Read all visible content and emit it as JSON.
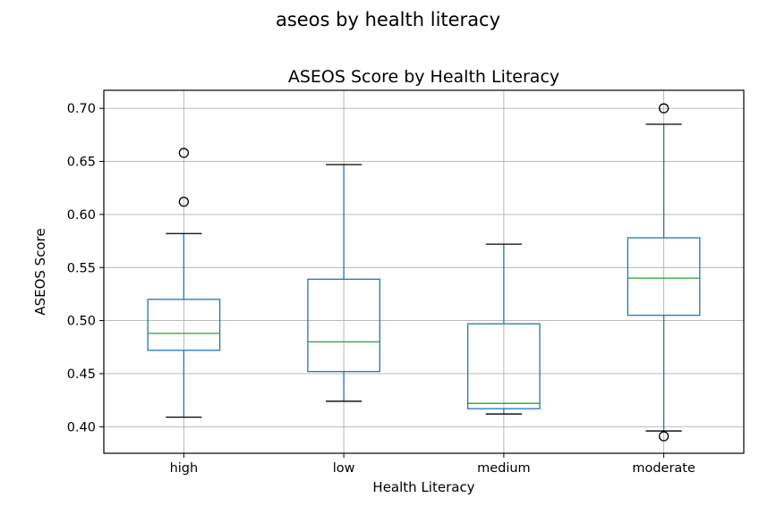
{
  "figure": {
    "suptitle": "aseos by health literacy"
  },
  "chart_data": {
    "type": "boxplot",
    "title": "ASEOS Score by Health Literacy",
    "xlabel": "Health Literacy",
    "ylabel": "ASEOS Score",
    "ylim": [
      0.375,
      0.717
    ],
    "yticks": [
      "0.40",
      "0.45",
      "0.50",
      "0.55",
      "0.60",
      "0.65",
      "0.70"
    ],
    "categories": [
      "high",
      "low",
      "medium",
      "moderate"
    ],
    "grid": true,
    "box_color": "#1f77b4",
    "median_color": "#2ca02c",
    "boxes": [
      {
        "category": "high",
        "whisker_low": 0.409,
        "q1": 0.472,
        "median": 0.488,
        "q3": 0.52,
        "whisker_high": 0.582,
        "outliers": [
          0.612,
          0.658
        ]
      },
      {
        "category": "low",
        "whisker_low": 0.424,
        "q1": 0.452,
        "median": 0.48,
        "q3": 0.539,
        "whisker_high": 0.647,
        "outliers": []
      },
      {
        "category": "medium",
        "whisker_low": 0.412,
        "q1": 0.417,
        "median": 0.422,
        "q3": 0.497,
        "whisker_high": 0.572,
        "outliers": []
      },
      {
        "category": "moderate",
        "whisker_low": 0.396,
        "q1": 0.505,
        "median": 0.54,
        "q3": 0.578,
        "whisker_high": 0.685,
        "outliers": [
          0.7,
          0.391
        ]
      }
    ]
  }
}
